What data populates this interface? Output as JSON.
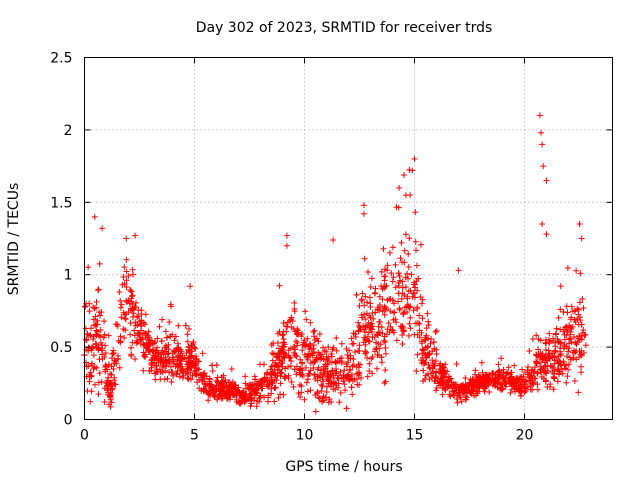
{
  "chart_data": {
    "type": "scatter",
    "title": "Day 302 of 2023, SRMTID for receiver trds",
    "xlabel": "GPS time / hours",
    "ylabel": "SRMTID / TECUs",
    "xlim": [
      0,
      24
    ],
    "ylim": [
      0,
      2.5
    ],
    "xticks": [
      0,
      5,
      10,
      15,
      20
    ],
    "xtick_labels": [
      "0",
      "5",
      "10",
      "15",
      "20"
    ],
    "yticks": [
      0,
      0.5,
      1,
      1.5,
      2,
      2.5
    ],
    "ytick_labels": [
      "0",
      "0.5",
      "1",
      "1.5",
      "2",
      "2.5"
    ],
    "grid": true,
    "marker": "+",
    "color": "#ff0000",
    "envelope": {
      "x": [
        0,
        0.3,
        0.6,
        0.9,
        1.2,
        1.5,
        1.8,
        2.1,
        2.5,
        3,
        3.5,
        4,
        4.5,
        5,
        5.5,
        6,
        6.5,
        7,
        7.5,
        8,
        8.5,
        9,
        9.5,
        10,
        10.5,
        11,
        11.5,
        12,
        12.5,
        13,
        13.5,
        14,
        14.5,
        15,
        15.5,
        16,
        16.5,
        17,
        17.5,
        18,
        18.5,
        19,
        19.5,
        20,
        20.5,
        21,
        21.5,
        22,
        22.5,
        22.8
      ],
      "center": [
        0.55,
        0.45,
        0.6,
        0.35,
        0.2,
        0.5,
        0.8,
        0.75,
        0.6,
        0.45,
        0.4,
        0.45,
        0.4,
        0.4,
        0.22,
        0.2,
        0.2,
        0.18,
        0.18,
        0.22,
        0.3,
        0.45,
        0.5,
        0.45,
        0.4,
        0.3,
        0.3,
        0.35,
        0.5,
        0.6,
        0.7,
        0.8,
        0.85,
        0.85,
        0.5,
        0.35,
        0.25,
        0.18,
        0.22,
        0.25,
        0.28,
        0.28,
        0.25,
        0.25,
        0.35,
        0.4,
        0.45,
        0.5,
        0.55,
        0.45
      ],
      "spread": [
        0.3,
        0.3,
        0.35,
        0.25,
        0.15,
        0.25,
        0.3,
        0.25,
        0.2,
        0.15,
        0.15,
        0.18,
        0.15,
        0.12,
        0.07,
        0.07,
        0.07,
        0.07,
        0.07,
        0.08,
        0.15,
        0.25,
        0.25,
        0.25,
        0.25,
        0.18,
        0.15,
        0.2,
        0.3,
        0.3,
        0.35,
        0.35,
        0.35,
        0.35,
        0.25,
        0.15,
        0.1,
        0.06,
        0.07,
        0.07,
        0.07,
        0.07,
        0.07,
        0.08,
        0.15,
        0.18,
        0.2,
        0.25,
        0.3,
        0.2
      ]
    },
    "outliers": [
      {
        "x": 20.7,
        "y": 2.1
      },
      {
        "x": 20.75,
        "y": 1.98
      },
      {
        "x": 20.8,
        "y": 1.9
      },
      {
        "x": 20.85,
        "y": 1.75
      },
      {
        "x": 21.0,
        "y": 1.65
      },
      {
        "x": 20.8,
        "y": 1.35
      },
      {
        "x": 21.0,
        "y": 1.28
      },
      {
        "x": 15.0,
        "y": 1.8
      },
      {
        "x": 14.9,
        "y": 1.72
      },
      {
        "x": 14.3,
        "y": 1.6
      },
      {
        "x": 14.8,
        "y": 1.55
      },
      {
        "x": 12.7,
        "y": 1.48
      },
      {
        "x": 12.7,
        "y": 1.42
      },
      {
        "x": 22.5,
        "y": 1.35
      },
      {
        "x": 22.6,
        "y": 1.25
      },
      {
        "x": 0.8,
        "y": 1.32
      },
      {
        "x": 2.3,
        "y": 1.27
      },
      {
        "x": 9.2,
        "y": 1.27
      },
      {
        "x": 11.3,
        "y": 1.24
      },
      {
        "x": 9.2,
        "y": 1.2
      },
      {
        "x": 17.0,
        "y": 1.03
      },
      {
        "x": 1.9,
        "y": 1.25
      },
      {
        "x": 4.8,
        "y": 0.92
      }
    ]
  }
}
